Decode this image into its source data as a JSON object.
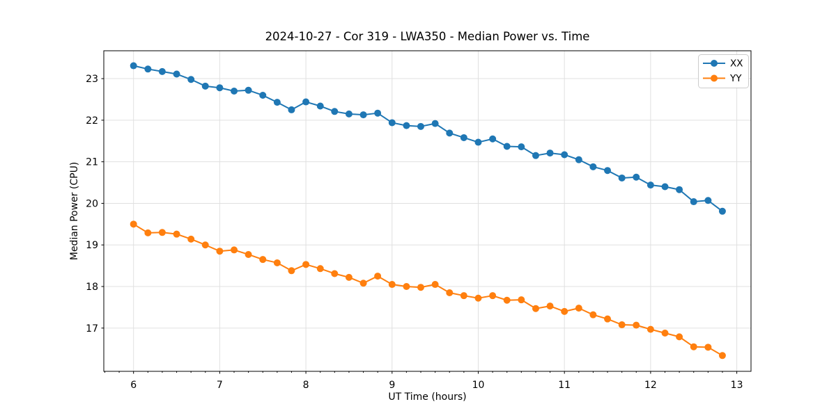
{
  "chart_data": {
    "type": "line",
    "title": "2024-10-27 - Cor 319 - LWA350 - Median Power vs. Time",
    "xlabel": "UT Time (hours)",
    "ylabel": "Median Power (CPU)",
    "xlim": [
      5.655,
      13.165
    ],
    "ylim": [
      15.96,
      23.67
    ],
    "xticks": [
      6,
      7,
      8,
      9,
      10,
      11,
      12,
      13
    ],
    "yticks": [
      17,
      18,
      19,
      20,
      21,
      22,
      23
    ],
    "x_minor_tick_step": 0.1667,
    "grid": true,
    "grid_color": "#e0e0e0",
    "legend_position": "upper right",
    "x": [
      6.0,
      6.167,
      6.333,
      6.5,
      6.667,
      6.833,
      7.0,
      7.167,
      7.333,
      7.5,
      7.667,
      7.833,
      8.0,
      8.167,
      8.333,
      8.5,
      8.667,
      8.833,
      9.0,
      9.167,
      9.333,
      9.5,
      9.667,
      9.833,
      10.0,
      10.167,
      10.333,
      10.5,
      10.667,
      10.833,
      11.0,
      11.167,
      11.333,
      11.5,
      11.667,
      11.833,
      12.0,
      12.167,
      12.333,
      12.5,
      12.667,
      12.833
    ],
    "series": [
      {
        "name": "XX",
        "color": "#1f77b4",
        "marker": "circle",
        "values": [
          23.31,
          23.23,
          23.17,
          23.11,
          22.98,
          22.82,
          22.78,
          22.7,
          22.72,
          22.6,
          22.43,
          22.25,
          22.44,
          22.34,
          22.21,
          22.15,
          22.13,
          22.17,
          21.94,
          21.87,
          21.85,
          21.92,
          21.69,
          21.58,
          21.47,
          21.55,
          21.37,
          21.36,
          21.15,
          21.21,
          21.17,
          21.05,
          20.88,
          20.79,
          20.61,
          20.63,
          20.44,
          20.4,
          20.33,
          20.04,
          20.07,
          19.81
        ]
      },
      {
        "name": "YY",
        "color": "#ff7f0e",
        "marker": "circle",
        "values": [
          19.5,
          19.29,
          19.3,
          19.26,
          19.14,
          19.0,
          18.85,
          18.88,
          18.77,
          18.65,
          18.57,
          18.38,
          18.53,
          18.43,
          18.31,
          18.22,
          18.08,
          18.25,
          18.05,
          18.0,
          17.98,
          18.05,
          17.85,
          17.78,
          17.72,
          17.78,
          17.67,
          17.68,
          17.47,
          17.53,
          17.4,
          17.48,
          17.32,
          17.22,
          17.08,
          17.07,
          16.97,
          16.88,
          16.79,
          16.55,
          16.54,
          16.34
        ]
      }
    ]
  }
}
